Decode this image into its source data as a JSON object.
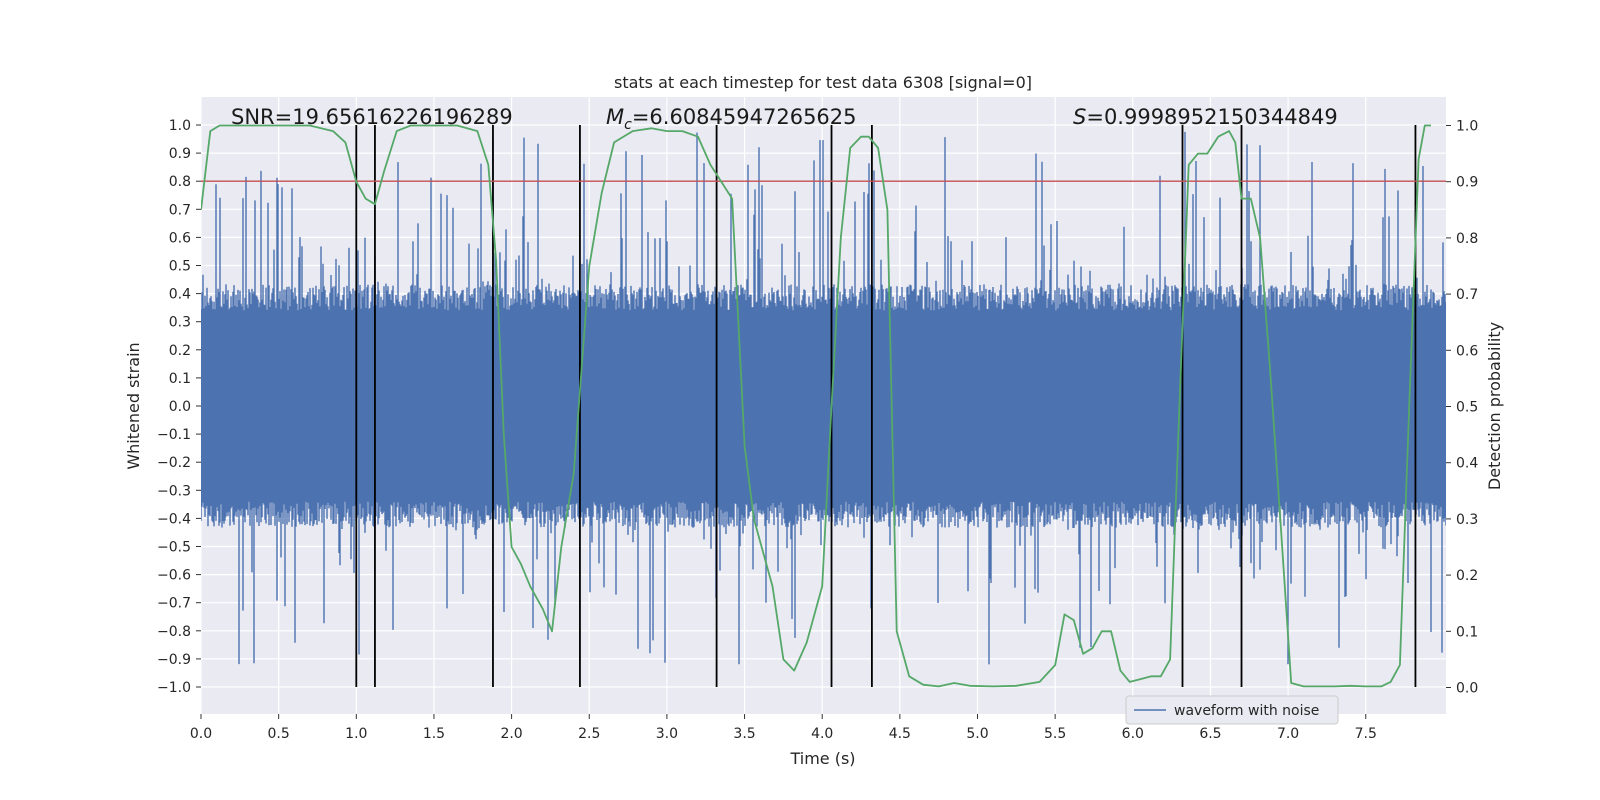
{
  "chart_data": {
    "type": "line",
    "title": "stats at each timestep for test data 6308 [signal=0]",
    "xlabel": "Time (s)",
    "ylabel": "Whitened strain",
    "y2label": "Detection probability",
    "xlim": [
      0.0,
      8.0
    ],
    "ylim": [
      -1.1,
      1.1
    ],
    "y2lim": [
      -0.05,
      1.05
    ],
    "xticks": [
      "0.0",
      "0.5",
      "1.0",
      "1.5",
      "2.0",
      "2.5",
      "3.0",
      "3.5",
      "4.0",
      "4.5",
      "5.0",
      "5.5",
      "6.0",
      "6.5",
      "7.0",
      "7.5"
    ],
    "yticks": [
      "1.0",
      "0.9",
      "0.8",
      "0.7",
      "0.6",
      "0.5",
      "0.4",
      "0.3",
      "0.2",
      "0.1",
      "0.0",
      "−0.1",
      "−0.2",
      "−0.3",
      "−0.4",
      "−0.5",
      "−0.6",
      "−0.7",
      "−0.8",
      "−0.9",
      "−1.0"
    ],
    "y2ticks": [
      "1.0",
      "0.9",
      "0.8",
      "0.7",
      "0.6",
      "0.5",
      "0.4",
      "0.3",
      "0.2",
      "0.1",
      "0.0"
    ],
    "grid": true,
    "legend_position": "lower-right",
    "annotations": {
      "snr": "SNR=19.65616226196289",
      "mc_symbol": "M",
      "mc_sub": "c",
      "mc_value": "=6.60845947265625",
      "s_symbol": "S",
      "s_value": "=0.9998952150344849"
    },
    "threshold": {
      "value": 0.8,
      "color": "#c44e52"
    },
    "vertical_lines": [
      1.0,
      1.12,
      1.88,
      2.44,
      3.32,
      4.06,
      4.32,
      6.32,
      6.7,
      7.82
    ],
    "series": [
      {
        "name": "waveform with noise",
        "color": "#4c72b0",
        "kind": "noise",
        "band_core": 0.37,
        "peak_max": 0.98
      },
      {
        "name": "",
        "color": "#55a868",
        "axis": "right",
        "x": [
          0.0,
          0.06,
          0.12,
          0.2,
          0.3,
          0.5,
          0.7,
          0.85,
          0.93,
          1.0,
          1.06,
          1.12,
          1.18,
          1.26,
          1.35,
          1.5,
          1.65,
          1.78,
          1.85,
          1.9,
          1.95,
          2.0,
          2.06,
          2.12,
          2.2,
          2.26,
          2.32,
          2.4,
          2.5,
          2.58,
          2.66,
          2.78,
          2.9,
          3.0,
          3.1,
          3.2,
          3.28,
          3.35,
          3.42,
          3.5,
          3.56,
          3.62,
          3.68,
          3.75,
          3.82,
          3.9,
          4.0,
          4.06,
          4.12,
          4.18,
          4.25,
          4.3,
          4.36,
          4.42,
          4.48,
          4.56,
          4.65,
          4.75,
          4.85,
          4.95,
          5.1,
          5.25,
          5.4,
          5.5,
          5.56,
          5.62,
          5.68,
          5.74,
          5.8,
          5.86,
          5.92,
          5.98,
          6.05,
          6.12,
          6.18,
          6.24,
          6.3,
          6.36,
          6.42,
          6.48,
          6.55,
          6.62,
          6.66,
          6.7,
          6.76,
          6.82,
          6.88,
          6.95,
          7.02,
          7.1,
          7.2,
          7.3,
          7.4,
          7.5,
          7.6,
          7.66,
          7.72,
          7.78,
          7.84,
          7.88,
          7.92
        ],
        "y": [
          0.85,
          0.99,
          1.0,
          1.0,
          1.0,
          1.0,
          1.0,
          0.99,
          0.97,
          0.9,
          0.87,
          0.86,
          0.92,
          0.99,
          1.0,
          1.0,
          1.0,
          0.99,
          0.93,
          0.76,
          0.45,
          0.25,
          0.22,
          0.18,
          0.14,
          0.1,
          0.25,
          0.38,
          0.75,
          0.88,
          0.97,
          0.99,
          0.995,
          0.99,
          0.99,
          0.98,
          0.93,
          0.9,
          0.87,
          0.43,
          0.3,
          0.24,
          0.18,
          0.05,
          0.03,
          0.08,
          0.18,
          0.5,
          0.8,
          0.96,
          0.98,
          0.98,
          0.96,
          0.85,
          0.1,
          0.02,
          0.005,
          0.002,
          0.008,
          0.003,
          0.002,
          0.003,
          0.01,
          0.04,
          0.13,
          0.12,
          0.06,
          0.07,
          0.1,
          0.1,
          0.03,
          0.01,
          0.015,
          0.02,
          0.02,
          0.05,
          0.5,
          0.93,
          0.95,
          0.95,
          0.98,
          0.99,
          0.97,
          0.87,
          0.87,
          0.8,
          0.58,
          0.3,
          0.008,
          0.002,
          0.002,
          0.002,
          0.003,
          0.002,
          0.002,
          0.01,
          0.04,
          0.5,
          0.94,
          1.0,
          1.0
        ]
      }
    ]
  }
}
